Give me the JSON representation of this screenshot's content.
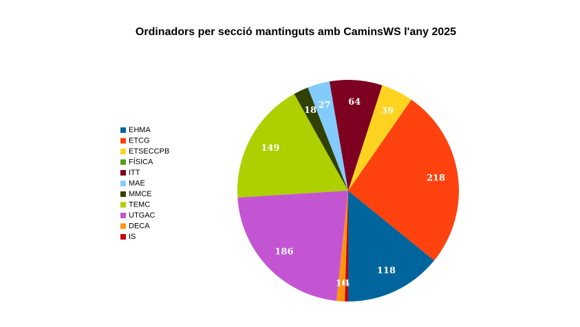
{
  "chart_data": {
    "type": "pie",
    "title": "Ordinadors per secció mantinguts amb CaminsWS l'any 2025",
    "categories": [
      "EHMA",
      "ETCG",
      "ETSECCPB",
      "FÍSICA",
      "ITT",
      "MAE",
      "MMCE",
      "TEMC",
      "UTGAC",
      "DECA",
      "IS"
    ],
    "values": [
      118,
      218,
      39,
      0,
      64,
      27,
      18,
      149,
      186,
      10,
      4
    ],
    "colors": [
      "#00659c",
      "#ff420e",
      "#ffd320",
      "#579d1c",
      "#7e0021",
      "#83caff",
      "#314004",
      "#aecf00",
      "#c355d3",
      "#ff950e",
      "#c5000b"
    ],
    "legend": "left"
  }
}
